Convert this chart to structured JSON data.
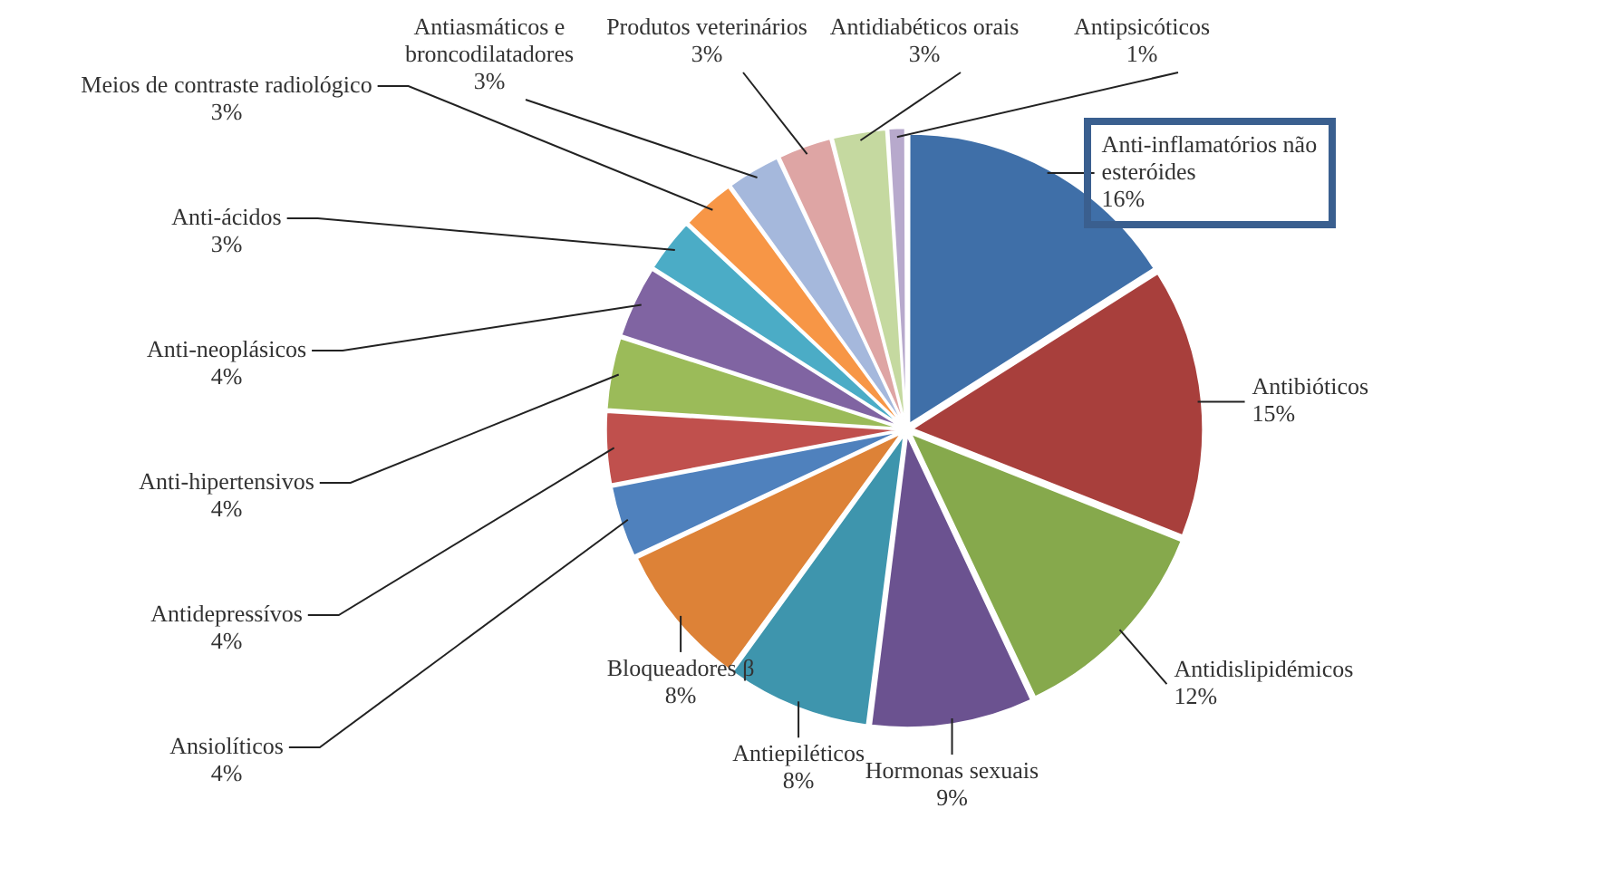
{
  "chart_data": {
    "type": "pie",
    "categories": [
      "Anti-inflamatórios não esteróides",
      "Antibióticos",
      "Antidislipidémicos",
      "Hormonas sexuais",
      "Antiepiléticos",
      "Bloqueadores β",
      "Ansiolíticos",
      "Antidepressívos",
      "Anti-hipertensivos",
      "Anti-neoplásicos",
      "Anti-ácidos",
      "Meios de contraste radiológico",
      "Antiasmáticos e broncodilatadores",
      "Produtos veterinários",
      "Antidiabéticos orais",
      "Antipsicóticos"
    ],
    "values": [
      16,
      15,
      12,
      9,
      8,
      8,
      4,
      4,
      4,
      4,
      3,
      3,
      3,
      3,
      3,
      1
    ],
    "value_labels": [
      "16%",
      "15%",
      "12%",
      "9%",
      "8%",
      "8%",
      "4%",
      "4%",
      "4%",
      "4%",
      "3%",
      "3%",
      "3%",
      "3%",
      "3%",
      "1%"
    ],
    "colors": [
      "#3f6fa8",
      "#a83f3c",
      "#86a94c",
      "#6b5290",
      "#3e95ad",
      "#dd8237",
      "#4f81bd",
      "#c0504d",
      "#9bbb59",
      "#8064a2",
      "#4bacc6",
      "#f79646",
      "#a5b8dc",
      "#dea5a4",
      "#c5d9a0",
      "#b7a9cc"
    ]
  }
}
